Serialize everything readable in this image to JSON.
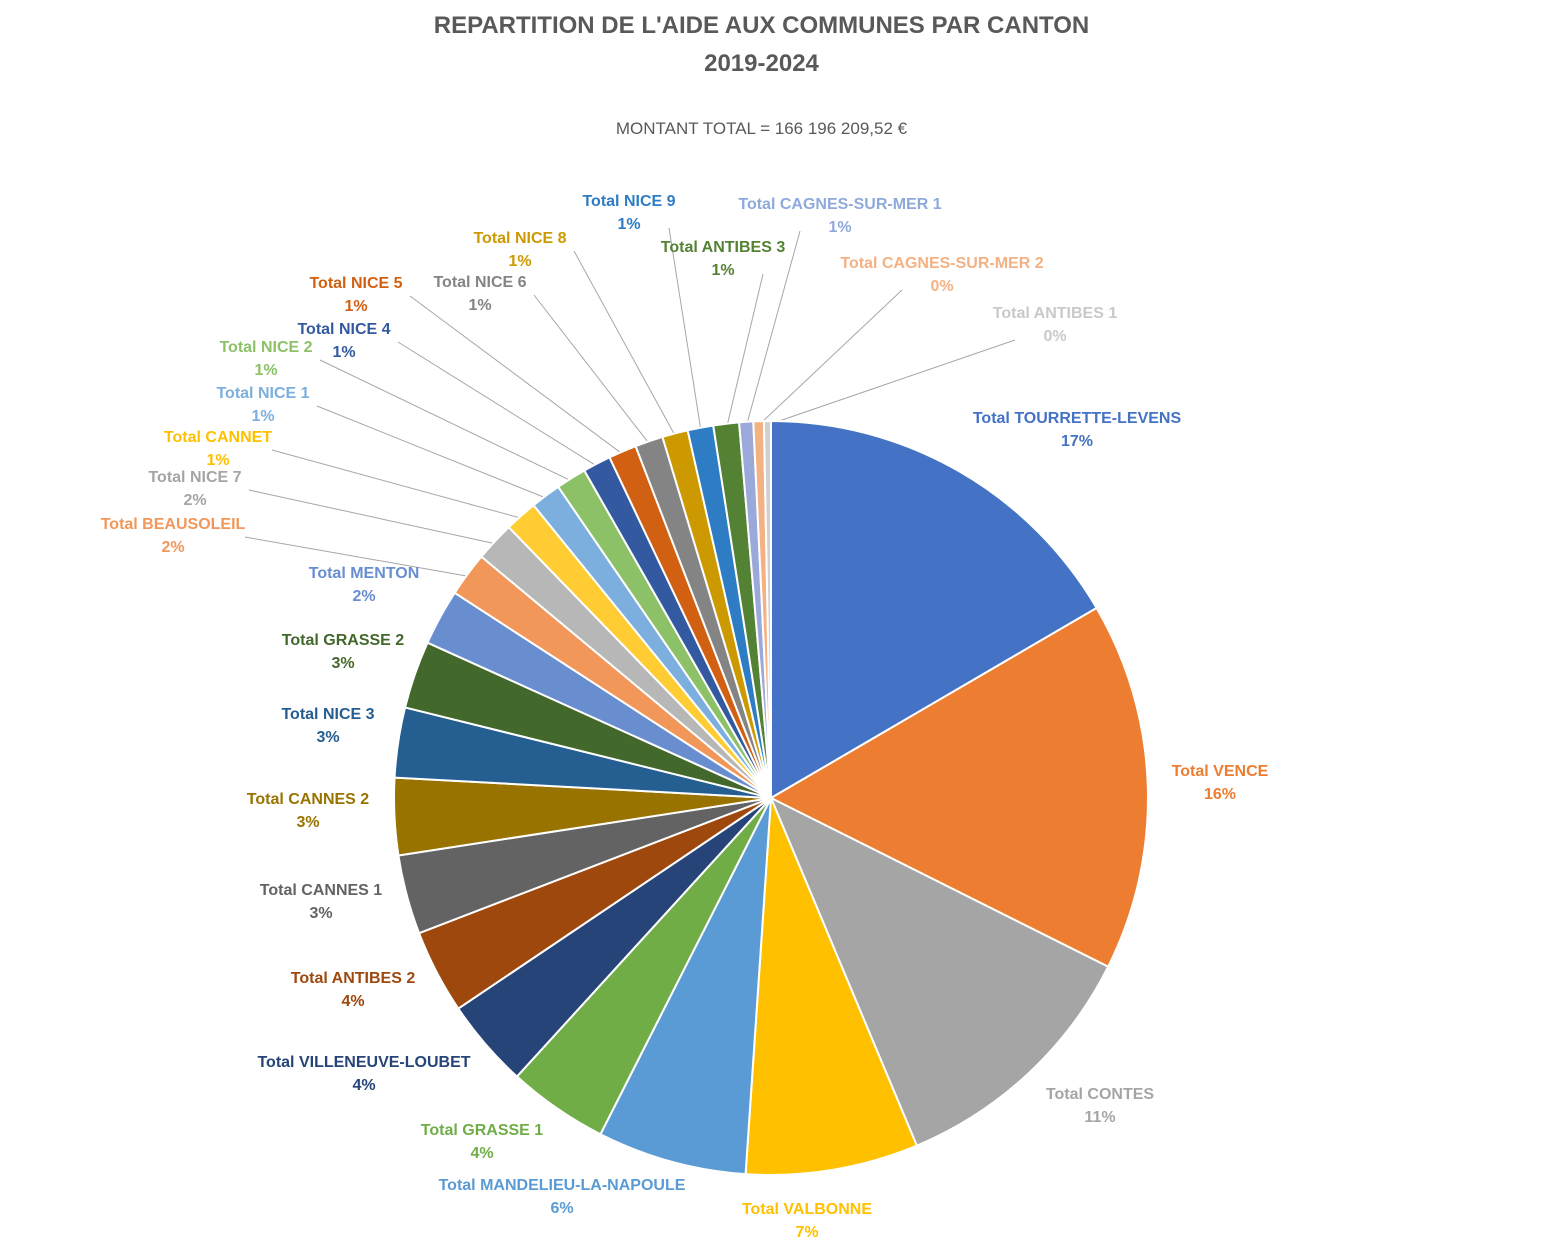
{
  "chart_data": {
    "type": "pie",
    "title": "REPARTITION DE L'AIDE AUX COMMUNES PAR CANTON",
    "title_line2": "2019-2024",
    "subtitle": "MONTANT TOTAL = 166 196 209,52 €",
    "start_angle_deg": 0,
    "direction": "clockwise",
    "slices": [
      {
        "label": "Total TOURRETTE-LEVENS",
        "pct_label": "17%",
        "value": 16.6,
        "color": "#4472C4"
      },
      {
        "label": "Total VENCE",
        "pct_label": "16%",
        "value": 15.8,
        "color": "#ED7D31"
      },
      {
        "label": "Total CONTES",
        "pct_label": "11%",
        "value": 11.3,
        "color": "#A5A5A5"
      },
      {
        "label": "Total VALBONNE",
        "pct_label": "7%",
        "value": 7.4,
        "color": "#FFC000"
      },
      {
        "label": "Total MANDELIEU-LA-NAPOULE",
        "pct_label": "6%",
        "value": 6.4,
        "color": "#5B9BD5"
      },
      {
        "label": "Total GRASSE 1",
        "pct_label": "4%",
        "value": 4.3,
        "color": "#70AD47"
      },
      {
        "label": "Total VILLENEUVE-LOUBET",
        "pct_label": "4%",
        "value": 3.8,
        "color": "#264478"
      },
      {
        "label": "Total ANTIBES 2",
        "pct_label": "4%",
        "value": 3.6,
        "color": "#9E480E"
      },
      {
        "label": "Total CANNES 1",
        "pct_label": "3%",
        "value": 3.4,
        "color": "#636363"
      },
      {
        "label": "Total CANNES 2",
        "pct_label": "3%",
        "value": 3.3,
        "color": "#997300"
      },
      {
        "label": "Total NICE 3",
        "pct_label": "3%",
        "value": 3.0,
        "color": "#255E91"
      },
      {
        "label": "Total GRASSE 2",
        "pct_label": "3%",
        "value": 2.9,
        "color": "#43682B"
      },
      {
        "label": "Total MENTON",
        "pct_label": "2%",
        "value": 2.4,
        "color": "#698ED0"
      },
      {
        "label": "Total BEAUSOLEIL",
        "pct_label": "2%",
        "value": 1.9,
        "color": "#F1975A"
      },
      {
        "label": "Total NICE 7",
        "pct_label": "2%",
        "value": 1.7,
        "color": "#B7B7B7"
      },
      {
        "label": "Total CANNET",
        "pct_label": "1%",
        "value": 1.4,
        "color": "#FFCD33"
      },
      {
        "label": "Total NICE 1",
        "pct_label": "1%",
        "value": 1.3,
        "color": "#7CAFDD"
      },
      {
        "label": "Total NICE 2",
        "pct_label": "1%",
        "value": 1.3,
        "color": "#8CC168"
      },
      {
        "label": "Total NICE 4",
        "pct_label": "1%",
        "value": 1.2,
        "color": "#335AA1"
      },
      {
        "label": "Total NICE 5",
        "pct_label": "1%",
        "value": 1.2,
        "color": "#D26012"
      },
      {
        "label": "Total NICE 6",
        "pct_label": "1%",
        "value": 1.2,
        "color": "#848484"
      },
      {
        "label": "Total NICE 8",
        "pct_label": "1%",
        "value": 1.1,
        "color": "#CC9A00"
      },
      {
        "label": "Total NICE 9",
        "pct_label": "1%",
        "value": 1.1,
        "color": "#2E7DC4"
      },
      {
        "label": "Total ANTIBES 3",
        "pct_label": "1%",
        "value": 1.1,
        "color": "#548235"
      },
      {
        "label": "Total CAGNES-SUR-MER 1",
        "pct_label": "1%",
        "value": 0.6,
        "color": "#9BA8DA"
      },
      {
        "label": "Total CAGNES-SUR-MER 2",
        "pct_label": "0%",
        "value": 0.45,
        "color": "#F4B183"
      },
      {
        "label": "Total ANTIBES 1",
        "pct_label": "0%",
        "value": 0.3,
        "color": "#D0D0D0"
      }
    ],
    "label_colors": {
      "Total NICE 7": "#A5A5A5",
      "Total CAGNES-SUR-MER 1": "#8EA9DB",
      "Total ANTIBES 1": "#C9C9C9",
      "Total CANNET": "#FFC000"
    }
  }
}
